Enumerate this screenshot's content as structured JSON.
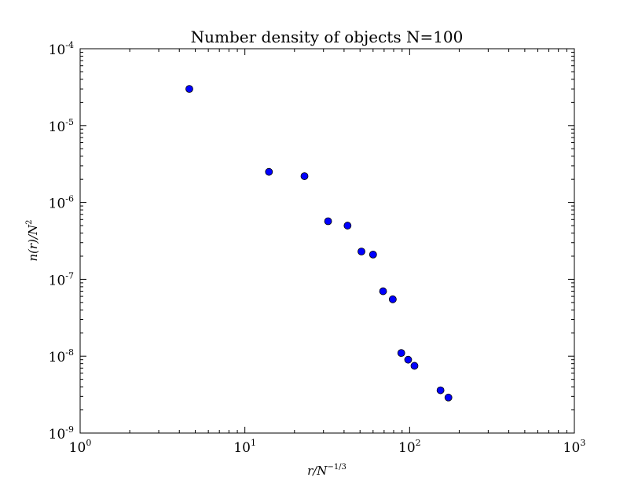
{
  "chart_data": {
    "type": "scatter",
    "title": "Number density of objects N=100",
    "xlabel": {
      "base": "r/N",
      "sup": "−1/3"
    },
    "ylabel": {
      "base": "n(r)/N",
      "sup": "2"
    },
    "xscale": "log",
    "yscale": "log",
    "xlim": [
      1,
      1000
    ],
    "ylim": [
      1e-09,
      0.0001
    ],
    "xticks": [
      {
        "value": 1,
        "base": "10",
        "exp": "0"
      },
      {
        "value": 10,
        "base": "10",
        "exp": "1"
      },
      {
        "value": 100,
        "base": "10",
        "exp": "2"
      },
      {
        "value": 1000,
        "base": "10",
        "exp": "3"
      }
    ],
    "yticks": [
      {
        "value": 1e-09,
        "base": "10",
        "exp": "-9"
      },
      {
        "value": 1e-08,
        "base": "10",
        "exp": "-8"
      },
      {
        "value": 1e-07,
        "base": "10",
        "exp": "-7"
      },
      {
        "value": 1e-06,
        "base": "10",
        "exp": "-6"
      },
      {
        "value": 1e-05,
        "base": "10",
        "exp": "-5"
      },
      {
        "value": 0.0001,
        "base": "10",
        "exp": "-4"
      }
    ],
    "grid": false,
    "marker_color": "#0000ff",
    "marker_edge": "#000000",
    "series": [
      {
        "points": [
          {
            "x": 4.6,
            "y": 3e-05
          },
          {
            "x": 14,
            "y": 2.5e-06
          },
          {
            "x": 23,
            "y": 2.2e-06
          },
          {
            "x": 32,
            "y": 5.7e-07
          },
          {
            "x": 42,
            "y": 5e-07
          },
          {
            "x": 51,
            "y": 2.3e-07
          },
          {
            "x": 60,
            "y": 2.1e-07
          },
          {
            "x": 69,
            "y": 7e-08
          },
          {
            "x": 79,
            "y": 5.5e-08
          },
          {
            "x": 89,
            "y": 1.1e-08
          },
          {
            "x": 98,
            "y": 9e-09
          },
          {
            "x": 107,
            "y": 7.5e-09
          },
          {
            "x": 154,
            "y": 3.6e-09
          },
          {
            "x": 172,
            "y": 2.9e-09
          }
        ]
      }
    ]
  }
}
